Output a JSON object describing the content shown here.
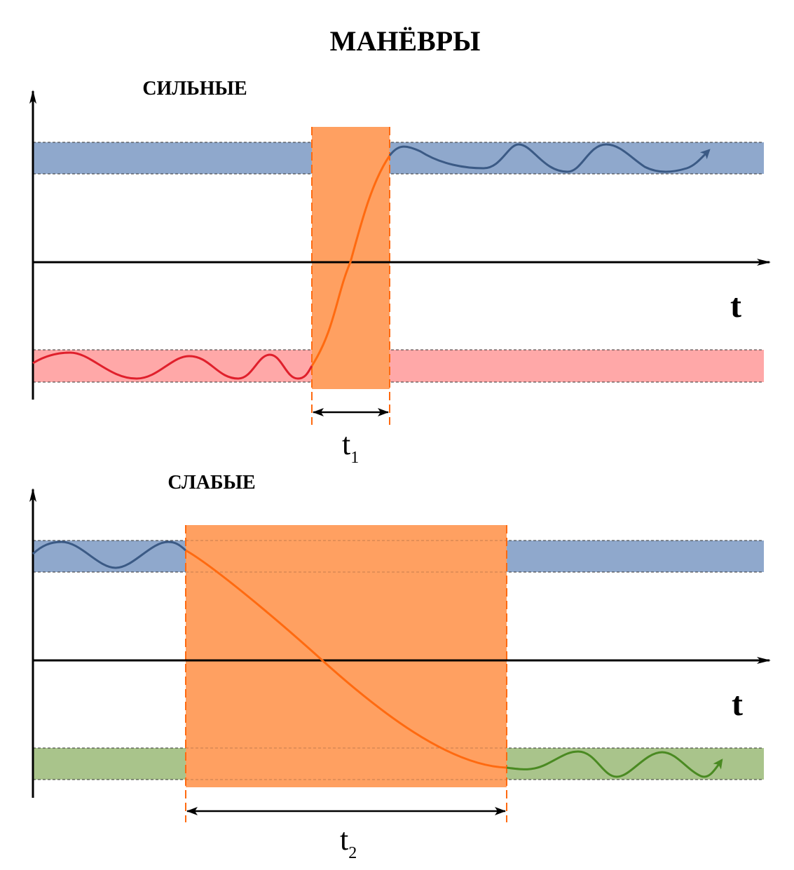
{
  "title": "МАНЁВРЫ",
  "colors": {
    "blue_band": "#8fa8cc",
    "red_band": "#ffa8a8",
    "green_band": "#a9c48b",
    "orange_band": "#ffa061",
    "blue_curve": "#3b5a85",
    "red_curve": "#e0202c",
    "green_curve": "#4a8a22",
    "orange_curve": "#ff6a10"
  },
  "panels": [
    {
      "label": "СИЛЬНЫЕ",
      "axis_label": "t",
      "duration": {
        "symbol": "t",
        "subscript": "1"
      }
    },
    {
      "label": "СЛАБЫЕ",
      "axis_label": "t",
      "duration": {
        "symbol": "t",
        "subscript": "2"
      }
    }
  ]
}
